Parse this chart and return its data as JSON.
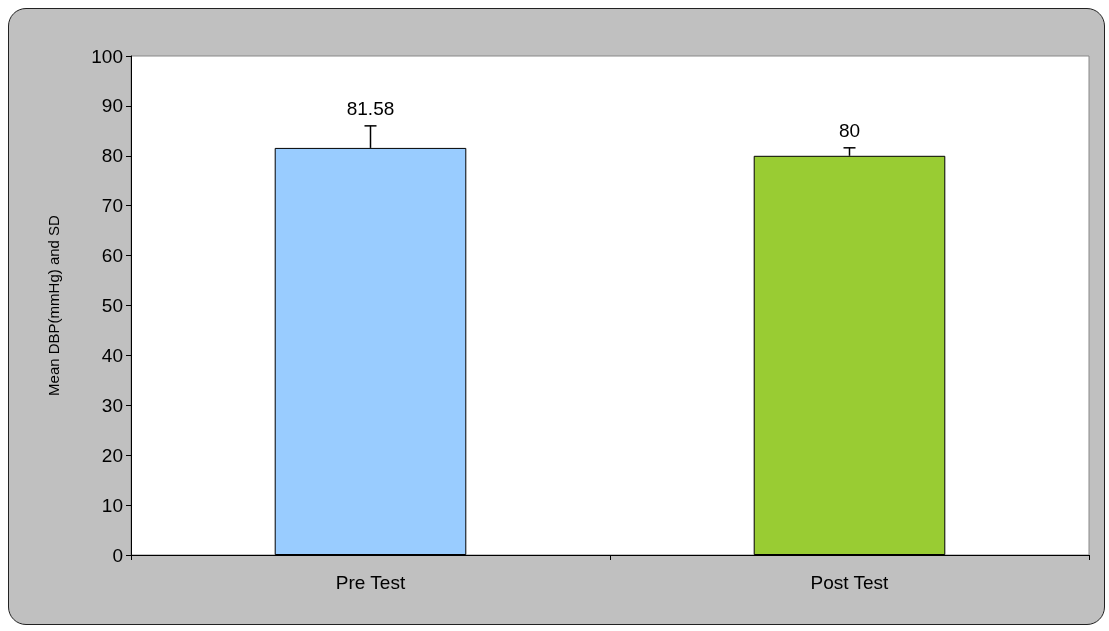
{
  "chart_data": {
    "type": "bar",
    "ylabel": "Mean DBP(mmHg) and SD",
    "categories": [
      "Pre Test",
      "Post Test"
    ],
    "values": [
      81.58,
      80
    ],
    "colors": [
      "#99ccff",
      "#99cc33"
    ],
    "errors": [
      [
        81.58,
        86
      ],
      [
        80,
        81.6
      ]
    ],
    "data_labels": true,
    "ylim": [
      0,
      100
    ],
    "yticks": [
      0,
      10,
      20,
      30,
      40,
      50,
      60,
      70,
      80,
      90,
      100
    ],
    "grid": false
  }
}
